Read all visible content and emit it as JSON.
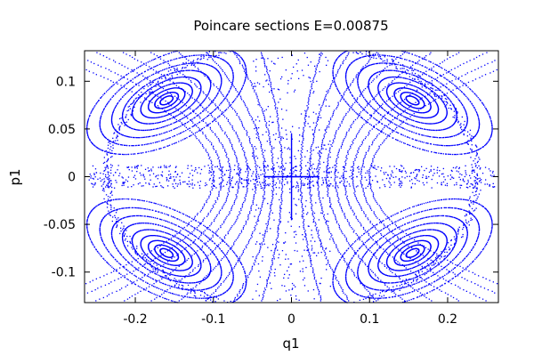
{
  "chart_data": {
    "type": "scatter",
    "title": "Poincare sections E=0.00875",
    "xlabel": "q1",
    "ylabel": "p1",
    "xlim": [
      -0.265,
      0.265
    ],
    "ylim": [
      -0.132,
      0.132
    ],
    "x_ticks": [
      -0.2,
      -0.1,
      0,
      0.1,
      0.2
    ],
    "x_tick_labels": [
      "-0.2",
      "-0.1",
      "0",
      "0.1",
      "0.2"
    ],
    "y_ticks": [
      0.1,
      0.05,
      0,
      -0.05,
      -0.1
    ],
    "y_tick_labels": [
      "0.1",
      "0.05",
      "0",
      "-0.05",
      "-0.1"
    ],
    "grid": false,
    "legend": "none",
    "point_color": "#0000ff",
    "islands": [
      {
        "center": [
          -0.16,
          0.08
        ]
      },
      {
        "center": [
          0.155,
          0.08
        ]
      },
      {
        "center": [
          -0.16,
          -0.08
        ]
      },
      {
        "center": [
          0.155,
          -0.08
        ]
      }
    ],
    "boundary": {
      "q_max": 0.265,
      "p_max": 0.132
    }
  }
}
